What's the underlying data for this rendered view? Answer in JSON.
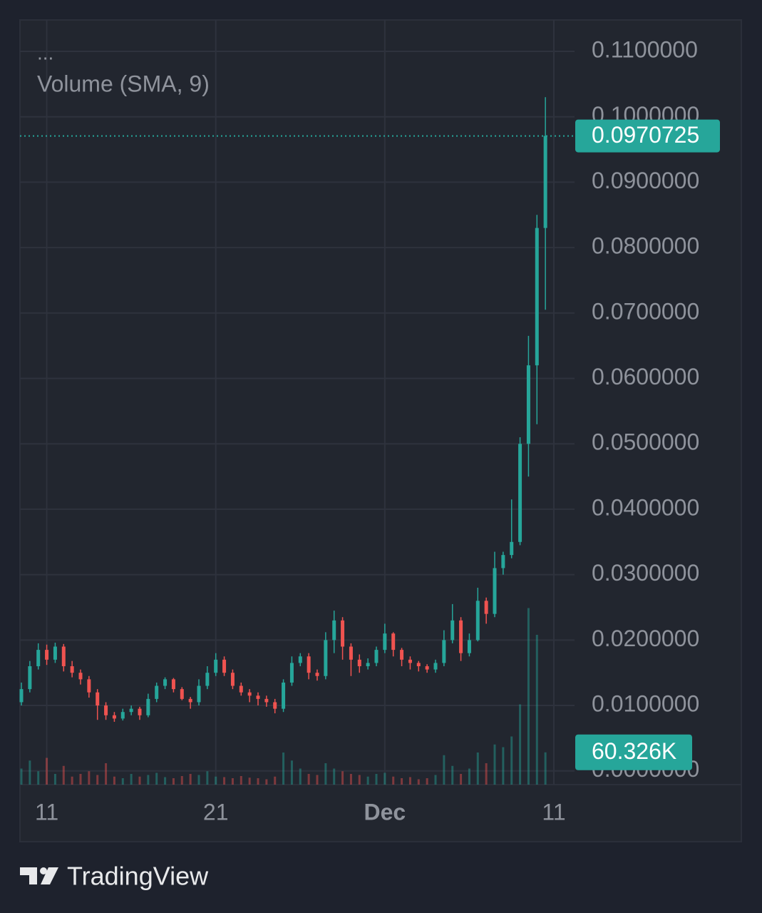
{
  "chart_data": {
    "type": "candlestick",
    "legend_more": "...",
    "brand": "TradingView",
    "categories": [
      null,
      null,
      null,
      "11",
      null,
      null,
      null,
      null,
      null,
      null,
      null,
      null,
      null,
      null,
      null,
      null,
      null,
      null,
      null,
      null,
      null,
      null,
      null,
      "21",
      null,
      null,
      null,
      null,
      null,
      null,
      null,
      null,
      null,
      null,
      null,
      null,
      null,
      null,
      null,
      null,
      null,
      null,
      null,
      "Dec",
      null,
      null,
      null,
      null,
      null,
      null,
      null,
      null,
      null,
      null,
      null,
      null,
      null,
      null,
      null,
      null,
      null,
      null,
      null,
      "11"
    ],
    "open": [
      0.0105,
      0.0125,
      0.016,
      0.0185,
      0.017,
      0.019,
      0.016,
      0.015,
      0.014,
      0.012,
      0.01,
      0.0085,
      0.008,
      0.009,
      0.0095,
      0.0085,
      0.011,
      0.013,
      0.014,
      0.0125,
      0.011,
      0.0105,
      0.013,
      0.015,
      0.017,
      0.015,
      0.013,
      0.012,
      0.0115,
      0.011,
      0.0105,
      0.0095,
      0.0135,
      0.0165,
      0.0175,
      0.015,
      0.0145,
      0.02,
      0.023,
      0.019,
      0.017,
      0.016,
      0.0165,
      0.0185,
      0.021,
      0.0185,
      0.017,
      0.0165,
      0.016,
      0.0155,
      0.0165,
      0.02,
      0.023,
      0.018,
      0.02,
      0.026,
      0.024,
      0.031,
      0.033,
      0.035,
      0.05,
      0.062,
      0.083,
      null
    ],
    "high": [
      0.0135,
      0.0168,
      0.0195,
      0.0193,
      0.0196,
      0.0194,
      0.0168,
      0.0155,
      0.0145,
      0.0125,
      0.0105,
      0.009,
      0.0095,
      0.01,
      0.0098,
      0.0118,
      0.0135,
      0.0143,
      0.0142,
      0.0128,
      0.0113,
      0.014,
      0.016,
      0.018,
      0.0175,
      0.0155,
      0.0135,
      0.0125,
      0.012,
      0.0115,
      0.011,
      0.014,
      0.0175,
      0.018,
      0.018,
      0.0155,
      0.0212,
      0.0245,
      0.0235,
      0.0195,
      0.0178,
      0.0172,
      0.019,
      0.0225,
      0.0212,
      0.0188,
      0.0175,
      0.0168,
      0.0163,
      0.017,
      0.0215,
      0.0255,
      0.0235,
      0.021,
      0.028,
      0.0265,
      0.0335,
      0.0335,
      0.0415,
      0.051,
      0.0665,
      0.085,
      0.103,
      null
    ],
    "low": [
      0.01,
      0.012,
      0.0155,
      0.0162,
      0.0165,
      0.0152,
      0.0143,
      0.0132,
      0.0112,
      0.0078,
      0.0078,
      0.0075,
      0.0077,
      0.0085,
      0.0078,
      0.0082,
      0.0105,
      0.0125,
      0.012,
      0.0108,
      0.0095,
      0.01,
      0.0125,
      0.0145,
      0.0145,
      0.0125,
      0.0115,
      0.0105,
      0.01,
      0.0098,
      0.0088,
      0.009,
      0.013,
      0.016,
      0.014,
      0.0138,
      0.014,
      0.018,
      0.017,
      0.0145,
      0.015,
      0.0155,
      0.016,
      0.018,
      0.0175,
      0.016,
      0.0155,
      0.0152,
      0.015,
      0.015,
      0.016,
      0.0195,
      0.0168,
      0.0175,
      0.0198,
      0.0225,
      0.0235,
      0.03,
      0.0325,
      0.0345,
      0.045,
      0.053,
      0.0705,
      null
    ],
    "close": [
      0.0125,
      0.016,
      0.0185,
      0.017,
      0.019,
      0.016,
      0.015,
      0.014,
      0.012,
      0.01,
      0.0085,
      0.008,
      0.009,
      0.0095,
      0.0085,
      0.011,
      0.013,
      0.014,
      0.0125,
      0.011,
      0.0105,
      0.013,
      0.015,
      0.017,
      0.015,
      0.013,
      0.012,
      0.0115,
      0.011,
      0.0105,
      0.0095,
      0.0135,
      0.0165,
      0.0175,
      0.015,
      0.0145,
      0.02,
      0.023,
      0.019,
      0.017,
      0.016,
      0.0165,
      0.0185,
      0.021,
      0.0185,
      0.017,
      0.0165,
      0.016,
      0.0155,
      0.0165,
      0.02,
      0.023,
      0.018,
      0.02,
      0.026,
      0.024,
      0.031,
      0.033,
      0.035,
      0.05,
      0.062,
      0.083,
      0.0970725,
      null
    ],
    "up_color": "#26a69a",
    "down_color": "#ef5350",
    "ylim": [
      -0.0021,
      0.1148
    ],
    "yticks": [
      {
        "value": 0,
        "label": "0.0000000"
      },
      {
        "value": 0.01,
        "label": "0.0100000"
      },
      {
        "value": 0.02,
        "label": "0.0200000"
      },
      {
        "value": 0.03,
        "label": "0.0300000"
      },
      {
        "value": 0.04,
        "label": "0.0400000"
      },
      {
        "value": 0.05,
        "label": "0.0500000"
      },
      {
        "value": 0.06,
        "label": "0.0600000"
      },
      {
        "value": 0.07,
        "label": "0.0700000"
      },
      {
        "value": 0.08,
        "label": "0.0800000"
      },
      {
        "value": 0.09,
        "label": "0.0900000"
      },
      {
        "value": 0.1,
        "label": "0.1000000"
      },
      {
        "value": 0.11,
        "label": "0.1100000"
      }
    ],
    "grid": true,
    "volume": {
      "name": "Volume (SMA, 9)",
      "label": "60.326K",
      "ylim": [
        0,
        400000
      ],
      "values": [
        30000,
        45000,
        25000,
        50000,
        20000,
        35000,
        15000,
        20000,
        25000,
        18000,
        40000,
        15000,
        12000,
        20000,
        15000,
        18000,
        22000,
        14000,
        12000,
        16000,
        20000,
        18000,
        25000,
        15000,
        14000,
        12000,
        16000,
        13000,
        12000,
        10000,
        15000,
        60000,
        45000,
        30000,
        20000,
        18000,
        40000,
        30000,
        25000,
        20000,
        18000,
        15000,
        20000,
        22000,
        15000,
        12000,
        14000,
        10000,
        12000,
        18000,
        55000,
        35000,
        20000,
        30000,
        60000,
        40000,
        75000,
        70000,
        90000,
        150000,
        330000,
        280000,
        60326,
        null
      ]
    }
  }
}
